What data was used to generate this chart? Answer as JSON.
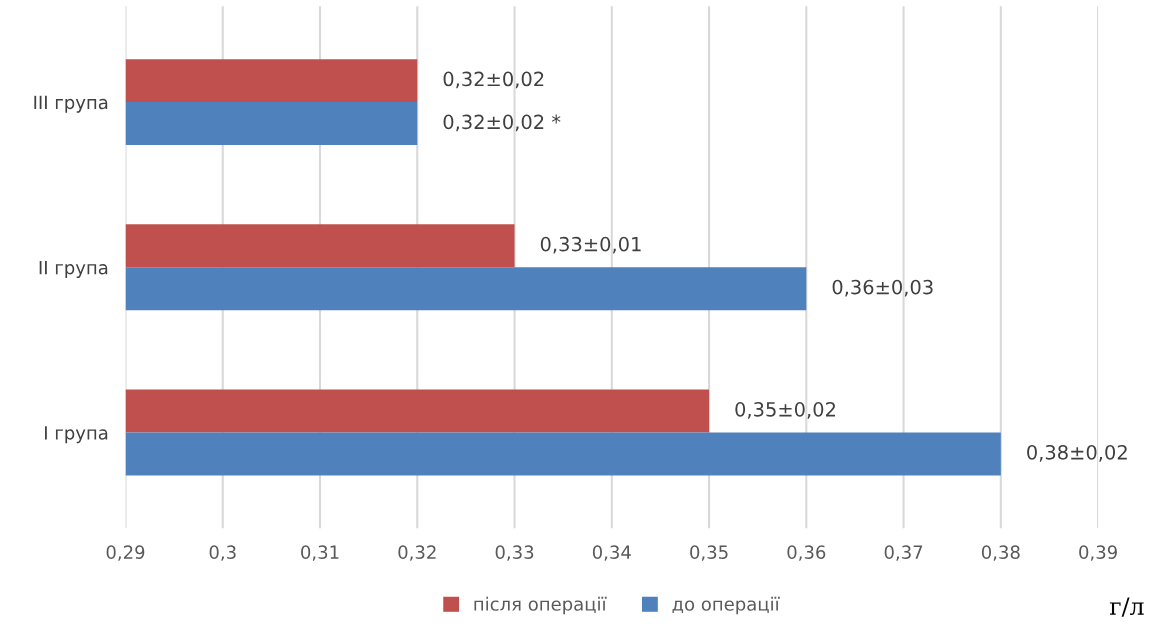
{
  "chart_data": {
    "type": "bar",
    "orientation": "horizontal",
    "categories": [
      "III група",
      "II група",
      "I група"
    ],
    "series": [
      {
        "name": "після операції",
        "color": "#c0504d",
        "values": [
          0.32,
          0.33,
          0.35
        ],
        "value_labels": [
          "0,32±0,02",
          "0,33±0,01",
          "0,35±0,02"
        ]
      },
      {
        "name": "до операції",
        "color": "#4f81bd",
        "values": [
          0.32,
          0.36,
          0.38
        ],
        "value_labels": [
          "0,32±0,02 *",
          "0,36±0,03",
          "0,38±0,02"
        ]
      }
    ],
    "xlim": [
      0.29,
      0.39
    ],
    "xticks": [
      {
        "value": 0.29,
        "label": "0,29"
      },
      {
        "value": 0.3,
        "label": "0,3"
      },
      {
        "value": 0.31,
        "label": "0,31"
      },
      {
        "value": 0.32,
        "label": "0,32"
      },
      {
        "value": 0.33,
        "label": "0,33"
      },
      {
        "value": 0.34,
        "label": "0,34"
      },
      {
        "value": 0.35,
        "label": "0,35"
      },
      {
        "value": 0.36,
        "label": "0,36"
      },
      {
        "value": 0.37,
        "label": "0,37"
      },
      {
        "value": 0.38,
        "label": "0,38"
      },
      {
        "value": 0.39,
        "label": "0,39"
      }
    ],
    "xlabel": "г/л",
    "grid": "x",
    "legend": "bottom"
  }
}
